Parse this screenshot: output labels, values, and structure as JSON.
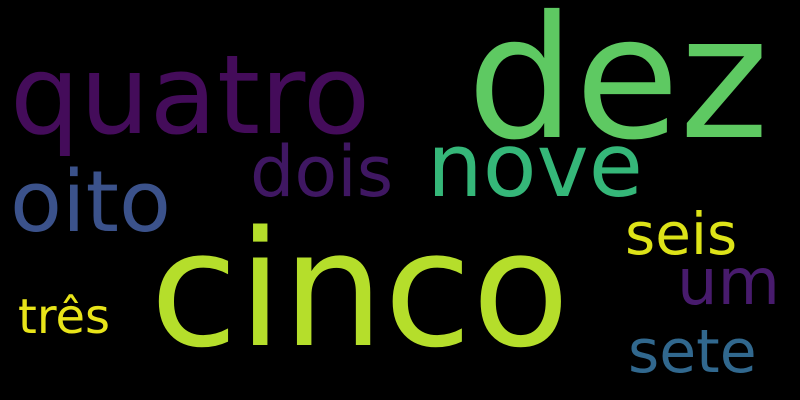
{
  "background": "#000000",
  "words": [
    {
      "key": "dez",
      "text": "dez",
      "color": "#5ec962",
      "weight": 10
    },
    {
      "key": "quatro",
      "text": "quatro",
      "color": "#440c5a",
      "weight": 4
    },
    {
      "key": "nove",
      "text": "nove",
      "color": "#35b779",
      "weight": 9
    },
    {
      "key": "dois",
      "text": "dois",
      "color": "#3f1762",
      "weight": 2
    },
    {
      "key": "oito",
      "text": "oito",
      "color": "#3b528b",
      "weight": 8
    },
    {
      "key": "seis",
      "text": "seis",
      "color": "#dde318",
      "weight": 6
    },
    {
      "key": "cinco",
      "text": "cinco",
      "color": "#b5de2b",
      "weight": 5
    },
    {
      "key": "um",
      "text": "um",
      "color": "#481b6d",
      "weight": 1
    },
    {
      "key": "tres",
      "text": "três",
      "color": "#e8e419",
      "weight": 3
    },
    {
      "key": "sete",
      "text": "sete",
      "color": "#31688e",
      "weight": 7
    }
  ]
}
